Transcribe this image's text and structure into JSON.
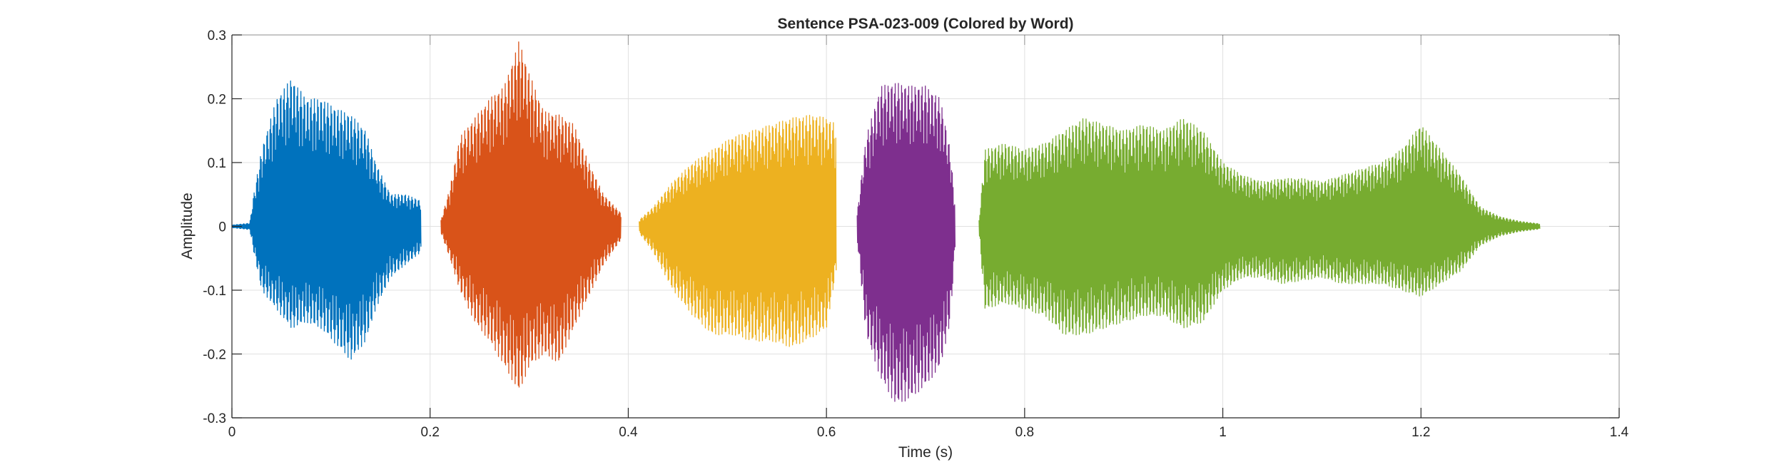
{
  "chart_data": {
    "type": "line",
    "title": "Sentence PSA-023-009 (Colored by Word)",
    "xlabel": "Time (s)",
    "ylabel": "Amplitude",
    "xlim": [
      0,
      1.4
    ],
    "ylim": [
      -0.3,
      0.3
    ],
    "x_ticks": [
      0,
      0.2,
      0.4,
      0.6,
      0.8,
      1,
      1.2,
      1.4
    ],
    "x_tick_labels": [
      "0",
      "0.2",
      "0.4",
      "0.6",
      "0.8",
      "1",
      "1.2",
      "1.4"
    ],
    "y_ticks": [
      0.3,
      0.2,
      0.1,
      0,
      -0.1,
      -0.2,
      -0.3
    ],
    "y_tick_labels": [
      "0.3",
      "0.2",
      "0.1",
      "0",
      "-0.1",
      "-0.2",
      "-0.3"
    ],
    "grid": true,
    "box": true,
    "series": [
      {
        "color": "#0072BD",
        "segments": [
          {
            "t_start": 0.0,
            "t_end": 0.191,
            "envelope": [
              [
                0.0,
                0.002,
                -0.002
              ],
              [
                0.018,
                0.005,
                -0.005
              ],
              [
                0.022,
                0.05,
                -0.04
              ],
              [
                0.03,
                0.12,
                -0.1
              ],
              [
                0.045,
                0.2,
                -0.13
              ],
              [
                0.06,
                0.232,
                -0.16
              ],
              [
                0.075,
                0.2,
                -0.15
              ],
              [
                0.09,
                0.2,
                -0.16
              ],
              [
                0.105,
                0.185,
                -0.185
              ],
              [
                0.12,
                0.175,
                -0.21
              ],
              [
                0.135,
                0.15,
                -0.18
              ],
              [
                0.145,
                0.1,
                -0.13
              ],
              [
                0.16,
                0.05,
                -0.08
              ],
              [
                0.175,
                0.05,
                -0.06
              ],
              [
                0.191,
                0.04,
                -0.04
              ]
            ]
          }
        ]
      },
      {
        "color": "#D95319",
        "segments": [
          {
            "t_start": 0.211,
            "t_end": 0.393,
            "envelope": [
              [
                0.211,
                0.01,
                -0.01
              ],
              [
                0.22,
                0.06,
                -0.05
              ],
              [
                0.23,
                0.14,
                -0.1
              ],
              [
                0.245,
                0.17,
                -0.15
              ],
              [
                0.26,
                0.2,
                -0.18
              ],
              [
                0.275,
                0.22,
                -0.22
              ],
              [
                0.29,
                0.292,
                -0.26
              ],
              [
                0.3,
                0.24,
                -0.22
              ],
              [
                0.315,
                0.18,
                -0.2
              ],
              [
                0.33,
                0.175,
                -0.215
              ],
              [
                0.345,
                0.16,
                -0.16
              ],
              [
                0.36,
                0.1,
                -0.11
              ],
              [
                0.375,
                0.05,
                -0.06
              ],
              [
                0.393,
                0.02,
                -0.02
              ]
            ]
          }
        ]
      },
      {
        "color": "#EDB120",
        "segments": [
          {
            "t_start": 0.411,
            "t_end": 0.61,
            "envelope": [
              [
                0.411,
                0.01,
                -0.01
              ],
              [
                0.425,
                0.03,
                -0.04
              ],
              [
                0.445,
                0.07,
                -0.1
              ],
              [
                0.465,
                0.1,
                -0.14
              ],
              [
                0.485,
                0.12,
                -0.17
              ],
              [
                0.505,
                0.14,
                -0.17
              ],
              [
                0.525,
                0.15,
                -0.18
              ],
              [
                0.545,
                0.16,
                -0.18
              ],
              [
                0.565,
                0.17,
                -0.19
              ],
              [
                0.585,
                0.175,
                -0.175
              ],
              [
                0.6,
                0.17,
                -0.16
              ],
              [
                0.61,
                0.16,
                -0.07
              ]
            ]
          }
        ]
      },
      {
        "color": "#7E2F8E",
        "segments": [
          {
            "t_start": 0.631,
            "t_end": 0.73,
            "envelope": [
              [
                0.631,
                0.02,
                -0.02
              ],
              [
                0.64,
                0.14,
                -0.17
              ],
              [
                0.655,
                0.22,
                -0.24
              ],
              [
                0.67,
                0.225,
                -0.28
              ],
              [
                0.685,
                0.22,
                -0.27
              ],
              [
                0.7,
                0.22,
                -0.25
              ],
              [
                0.715,
                0.2,
                -0.22
              ],
              [
                0.725,
                0.12,
                -0.15
              ],
              [
                0.73,
                0.03,
                -0.03
              ]
            ]
          }
        ]
      },
      {
        "color": "#77AC30",
        "segments": [
          {
            "t_start": 0.754,
            "t_end": 1.32,
            "envelope": [
              [
                0.754,
                0.01,
                -0.01
              ],
              [
                0.76,
                0.12,
                -0.13
              ],
              [
                0.78,
                0.13,
                -0.12
              ],
              [
                0.8,
                0.12,
                -0.13
              ],
              [
                0.82,
                0.13,
                -0.14
              ],
              [
                0.84,
                0.15,
                -0.17
              ],
              [
                0.86,
                0.17,
                -0.17
              ],
              [
                0.88,
                0.16,
                -0.16
              ],
              [
                0.9,
                0.15,
                -0.15
              ],
              [
                0.92,
                0.16,
                -0.14
              ],
              [
                0.94,
                0.15,
                -0.14
              ],
              [
                0.96,
                0.17,
                -0.16
              ],
              [
                0.98,
                0.15,
                -0.15
              ],
              [
                1.0,
                0.1,
                -0.1
              ],
              [
                1.02,
                0.08,
                -0.08
              ],
              [
                1.04,
                0.07,
                -0.08
              ],
              [
                1.06,
                0.075,
                -0.09
              ],
              [
                1.08,
                0.075,
                -0.085
              ],
              [
                1.1,
                0.07,
                -0.08
              ],
              [
                1.12,
                0.08,
                -0.09
              ],
              [
                1.14,
                0.09,
                -0.09
              ],
              [
                1.16,
                0.1,
                -0.09
              ],
              [
                1.18,
                0.12,
                -0.1
              ],
              [
                1.2,
                0.16,
                -0.11
              ],
              [
                1.22,
                0.12,
                -0.09
              ],
              [
                1.24,
                0.08,
                -0.07
              ],
              [
                1.26,
                0.03,
                -0.03
              ],
              [
                1.28,
                0.015,
                -0.015
              ],
              [
                1.3,
                0.008,
                -0.008
              ],
              [
                1.32,
                0.004,
                -0.004
              ]
            ]
          }
        ]
      }
    ]
  }
}
